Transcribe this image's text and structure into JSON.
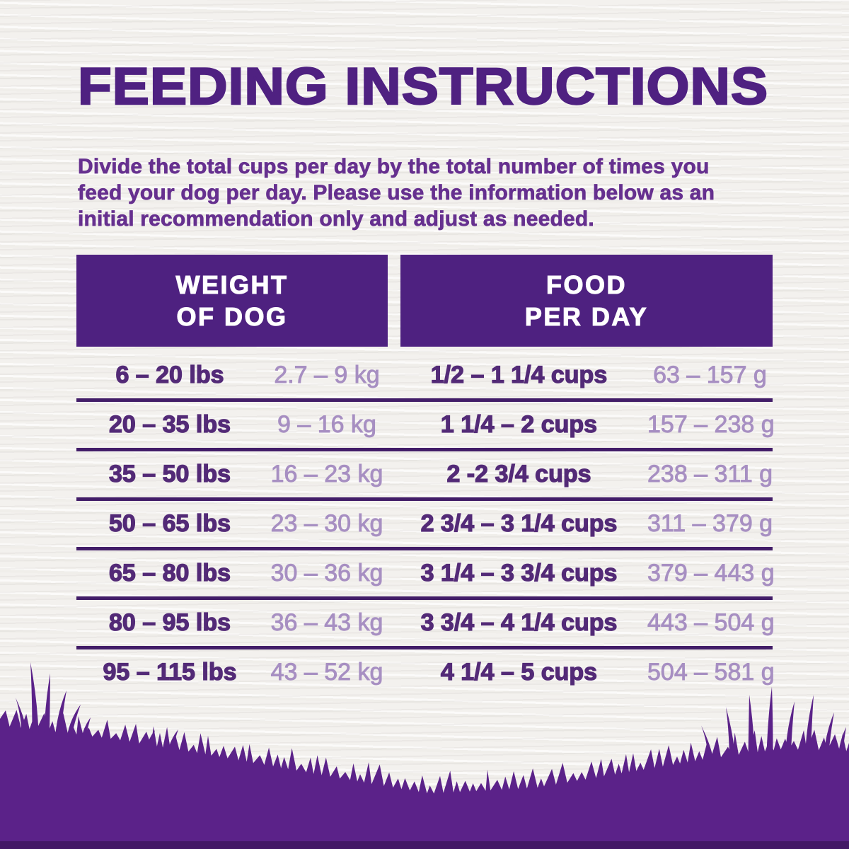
{
  "title": "FEEDING INSTRUCTIONS",
  "intro": {
    "lines": [
      "Divide the total cups per day by the total number of times you",
      "feed your dog per day. Please use the information below as an",
      "initial recommendation only and adjust as needed."
    ]
  },
  "table": {
    "headers": [
      {
        "line1": "WEIGHT",
        "line2": "OF DOG"
      },
      {
        "line1": "FOOD",
        "line2": "PER DAY"
      }
    ],
    "rows": [
      {
        "lbs": "6 – 20 lbs",
        "kg": "2.7 – 9 kg",
        "cups": "1/2 – 1 1/4 cups",
        "grams": "63 – 157 g"
      },
      {
        "lbs": "20 – 35 lbs",
        "kg": "9 – 16 kg",
        "cups": "1 1/4 – 2 cups",
        "grams": "157 – 238 g"
      },
      {
        "lbs": "35 – 50 lbs",
        "kg": "16 – 23 kg",
        "cups": "2 -2 3/4 cups",
        "grams": "238 – 311 g"
      },
      {
        "lbs": "50 – 65 lbs",
        "kg": "23 – 30 kg",
        "cups": "2 3/4 – 3 1/4 cups",
        "grams": "311 – 379 g"
      },
      {
        "lbs": "65 – 80 lbs",
        "kg": "30 – 36 kg",
        "cups": "3 1/4 – 3 3/4 cups",
        "grams": "379 – 443 g"
      },
      {
        "lbs": "80 – 95 lbs",
        "kg": "36 – 43 kg",
        "cups": "3 3/4 – 4 1/4 cups",
        "grams": "443 – 504 g"
      },
      {
        "lbs": "95 – 115 lbs",
        "kg": "43 – 52 kg",
        "cups": "4 1/4 – 5 cups",
        "grams": "504 – 581 g"
      }
    ]
  },
  "colors": {
    "background": "#f3f1ee",
    "title": "#4f2181",
    "intro_text": "#66308f",
    "header_bg": "#4e2180",
    "header_text": "#ffffff",
    "row_bold": "#532a77",
    "row_light": "#a78fc2",
    "divider": "#421d68",
    "grass": "#5b2289"
  }
}
